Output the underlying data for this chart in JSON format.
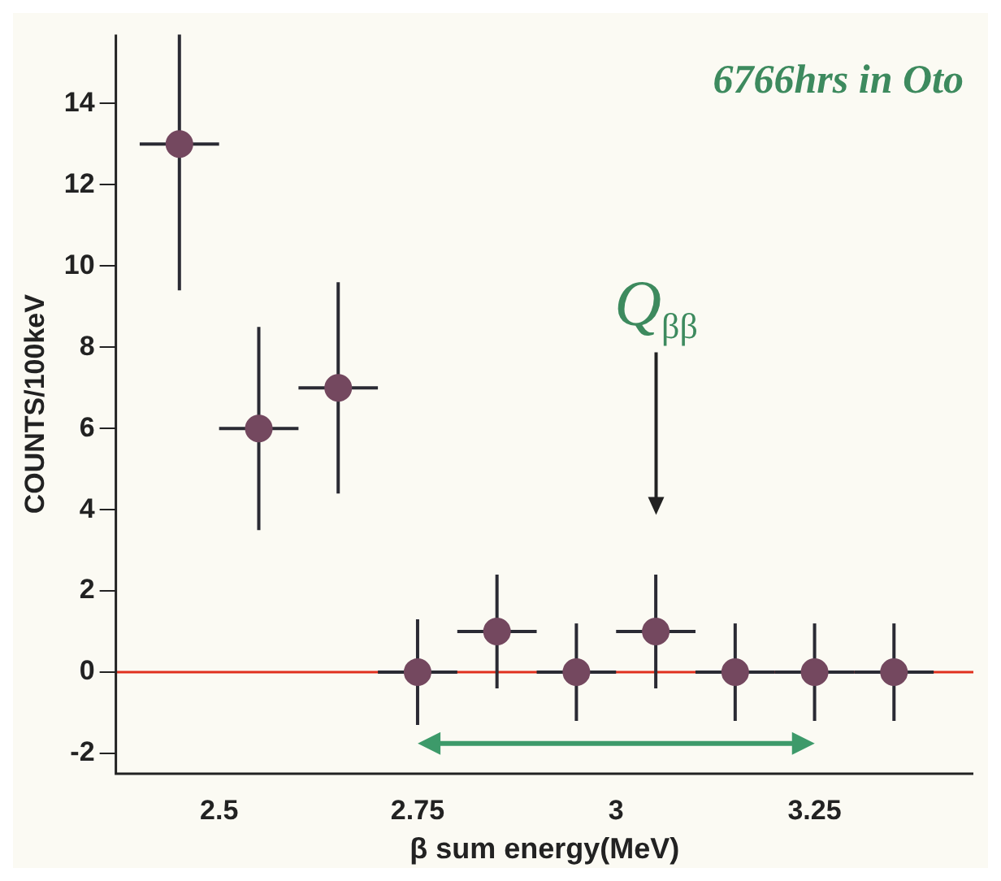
{
  "chart_data": {
    "type": "scatter",
    "xlabel": "β sum energy(MeV)",
    "ylabel": "COUNTS/100keV",
    "x": [
      2.45,
      2.55,
      2.65,
      2.75,
      2.85,
      2.95,
      3.05,
      3.15,
      3.25,
      3.35
    ],
    "values": [
      13,
      6,
      7,
      0,
      1,
      0,
      1,
      0,
      0,
      0
    ],
    "errors": [
      [
        9.4,
        15.7
      ],
      2.5,
      2.6,
      1.3,
      1.4,
      1.2,
      1.4,
      1.2,
      1.2,
      1.2
    ],
    "xerrors": [
      0.05,
      0.05,
      0.05,
      0.05,
      0.05,
      0.05,
      0.05,
      0.05,
      0.05,
      0.05
    ],
    "color": "#74485f",
    "marker": "circle",
    "xlim": [
      2.37,
      3.45
    ],
    "xticks": [
      2.5,
      2.75,
      3,
      3.25
    ],
    "ylim": [
      -2.5,
      15.7
    ],
    "yticks": [
      14,
      12,
      10,
      8,
      6,
      4,
      2,
      0,
      -2
    ],
    "grid": false,
    "legend": false,
    "ref_lines": [
      {
        "axis": "y",
        "value": 0,
        "color": "#e0301e"
      }
    ],
    "annotations": [
      "6766hrs in Oto",
      "Q$_{ββ}$"
    ]
  }
}
